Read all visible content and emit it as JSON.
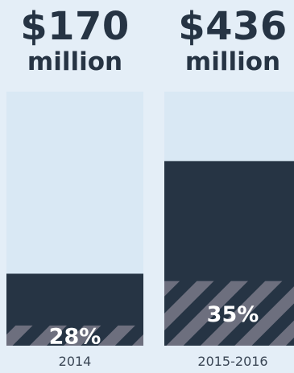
{
  "chart_data": {
    "type": "bar",
    "categories": [
      "2014",
      "2015-2016"
    ],
    "bars": [
      {
        "category": "2014",
        "amount_label": "$170",
        "unit_label": "million",
        "amount": 170,
        "share": 28,
        "share_label": "28%"
      },
      {
        "category": "2015-2016",
        "amount_label": "$436",
        "unit_label": "million",
        "amount": 436,
        "share": 35,
        "share_label": "35%"
      }
    ],
    "ylim": [
      0,
      600
    ],
    "colors": {
      "background": "#e4eef7",
      "track": "#d9e8f4",
      "amount_fill": "#263444",
      "share_stripe": "#6d6f7e"
    }
  }
}
